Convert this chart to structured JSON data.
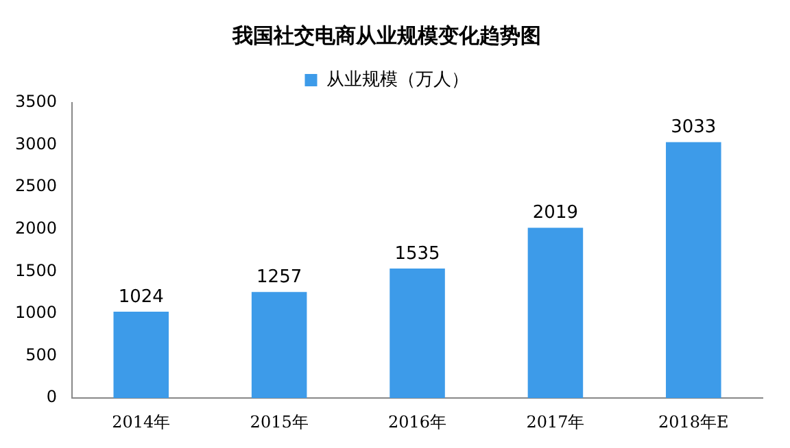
{
  "chart_data": {
    "type": "bar",
    "title": "我国社交电商从业规模变化趋势图",
    "categories": [
      "2014年",
      "2015年",
      "2016年",
      "2017年",
      "2018年E"
    ],
    "series": [
      {
        "name": "从业规模（万人）",
        "color": "#3d9be9",
        "values": [
          1024,
          1257,
          1535,
          2019,
          3033
        ]
      }
    ],
    "ylim": [
      0,
      3500
    ],
    "yticks": [
      0,
      500,
      1000,
      1500,
      2000,
      2500,
      3000,
      3500
    ],
    "grid": false,
    "legend": "top",
    "data_labels": true
  }
}
